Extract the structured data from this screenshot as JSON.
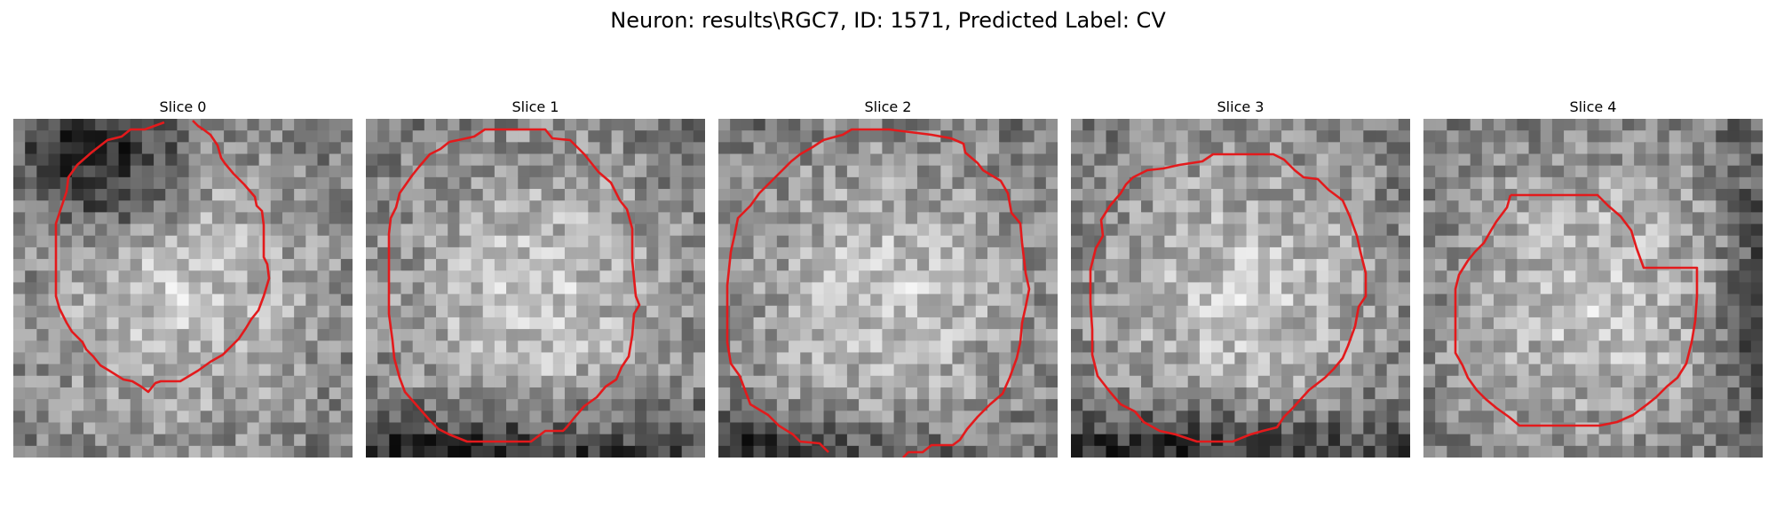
{
  "figure": {
    "title": "Neuron: results\\RGC7, ID: 1571, Predicted Label: CV"
  },
  "colors": {
    "contour": "#e31a1c",
    "background": "#ffffff"
  },
  "panels": [
    {
      "title": "Slice 0",
      "contour_shape": "open-top",
      "darkening": "upper-left"
    },
    {
      "title": "Slice 1",
      "contour_shape": "closed",
      "darkening": "bottom"
    },
    {
      "title": "Slice 2",
      "contour_shape": "open-bottom",
      "darkening": "bottom-left"
    },
    {
      "title": "Slice 3",
      "contour_shape": "closed",
      "darkening": "bottom"
    },
    {
      "title": "Slice 4",
      "contour_shape": "closed",
      "darkening": "right"
    }
  ]
}
